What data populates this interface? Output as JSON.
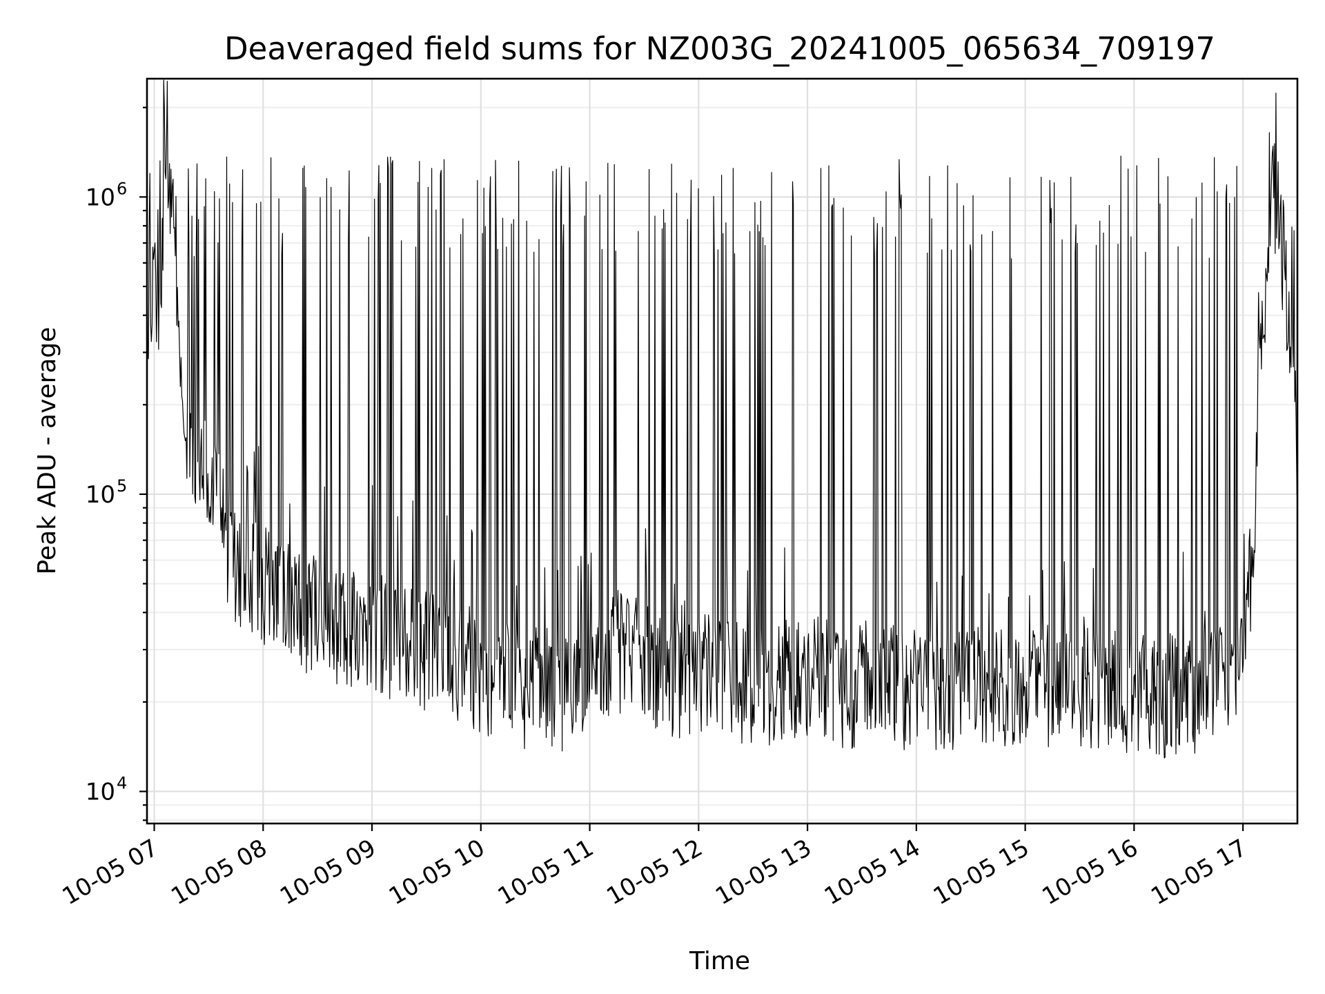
{
  "chart_data": {
    "type": "line",
    "title": "Deaveraged field sums for NZ003G_20241005_065634_709197",
    "xlabel": "Time",
    "ylabel": "Peak ADU - average",
    "y_scale": "log",
    "xlim": [
      "2024-10-05 06:56",
      "2024-10-05 17:30"
    ],
    "ylim": [
      7800,
      2500000
    ],
    "grid": "on",
    "legend": "none",
    "line_color": "#000000",
    "x_ticks": [
      {
        "time": "2024-10-05 07:00",
        "label": "10-05 07"
      },
      {
        "time": "2024-10-05 08:00",
        "label": "10-05 08"
      },
      {
        "time": "2024-10-05 09:00",
        "label": "10-05 09"
      },
      {
        "time": "2024-10-05 10:00",
        "label": "10-05 10"
      },
      {
        "time": "2024-10-05 11:00",
        "label": "10-05 11"
      },
      {
        "time": "2024-10-05 12:00",
        "label": "10-05 12"
      },
      {
        "time": "2024-10-05 13:00",
        "label": "10-05 13"
      },
      {
        "time": "2024-10-05 14:00",
        "label": "10-05 14"
      },
      {
        "time": "2024-10-05 15:00",
        "label": "10-05 15"
      },
      {
        "time": "2024-10-05 16:00",
        "label": "10-05 16"
      },
      {
        "time": "2024-10-05 17:00",
        "label": "10-05 17"
      }
    ],
    "y_ticks": [
      {
        "value": 10000,
        "base": "10",
        "exponent": "4"
      },
      {
        "value": 100000,
        "base": "10",
        "exponent": "5"
      },
      {
        "value": 1000000,
        "base": "10",
        "exponent": "6"
      }
    ],
    "series": [
      {
        "x": [
          "2024-10-05 06:56",
          "2024-10-05 07:03",
          "2024-10-05 07:07",
          "2024-10-05 07:11",
          "2024-10-05 07:15",
          "2024-10-05 07:19",
          "2024-10-05 07:25",
          "2024-10-05 07:31",
          "2024-10-05 07:37",
          "2024-10-05 07:43",
          "2024-10-05 07:49",
          "2024-10-05 07:55",
          "2024-10-05 08:05",
          "2024-10-05 08:15",
          "2024-10-05 08:25",
          "2024-10-05 08:35",
          "2024-10-05 08:45",
          "2024-10-05 08:55",
          "2024-10-05 09:05",
          "2024-10-05 09:15",
          "2024-10-05 09:25",
          "2024-10-05 09:35",
          "2024-10-05 09:45",
          "2024-10-05 09:55",
          "2024-10-05 10:05",
          "2024-10-05 10:15",
          "2024-10-05 10:25",
          "2024-10-05 10:35",
          "2024-10-05 10:45",
          "2024-10-05 10:55",
          "2024-10-05 11:05",
          "2024-10-05 11:15",
          "2024-10-05 11:25",
          "2024-10-05 11:35",
          "2024-10-05 11:45",
          "2024-10-05 11:55",
          "2024-10-05 12:05",
          "2024-10-05 12:15",
          "2024-10-05 12:25",
          "2024-10-05 12:35",
          "2024-10-05 12:45",
          "2024-10-05 12:55",
          "2024-10-05 13:05",
          "2024-10-05 13:15",
          "2024-10-05 13:25",
          "2024-10-05 13:35",
          "2024-10-05 13:45",
          "2024-10-05 13:55",
          "2024-10-05 14:05",
          "2024-10-05 14:15",
          "2024-10-05 14:25",
          "2024-10-05 14:35",
          "2024-10-05 14:45",
          "2024-10-05 14:55",
          "2024-10-05 15:05",
          "2024-10-05 15:15",
          "2024-10-05 15:25",
          "2024-10-05 15:35",
          "2024-10-05 15:45",
          "2024-10-05 15:55",
          "2024-10-05 16:05",
          "2024-10-05 16:15",
          "2024-10-05 16:25",
          "2024-10-05 16:35",
          "2024-10-05 16:45",
          "2024-10-05 16:55",
          "2024-10-05 17:05",
          "2024-10-05 17:10",
          "2024-10-05 17:15",
          "2024-10-05 17:20",
          "2024-10-05 17:25",
          "2024-10-05 17:30"
        ],
        "y": [
          450000,
          480000,
          1300000,
          900000,
          250000,
          160000,
          140000,
          100000,
          80000,
          60000,
          55000,
          50000,
          50000,
          45000,
          40000,
          38000,
          35000,
          35000,
          33000,
          32000,
          30000,
          30000,
          28000,
          26000,
          24000,
          23000,
          22000,
          22000,
          22000,
          24000,
          28000,
          30000,
          28000,
          26000,
          24000,
          23000,
          25000,
          24000,
          23000,
          22000,
          23000,
          24000,
          24000,
          23000,
          22000,
          24000,
          23000,
          22000,
          23000,
          22000,
          22000,
          23000,
          22000,
          22000,
          22000,
          22000,
          22000,
          22000,
          22000,
          22000,
          21000,
          21000,
          21000,
          21000,
          22000,
          25000,
          60000,
          300000,
          1000000,
          900000,
          400000,
          150000
        ]
      }
    ]
  }
}
